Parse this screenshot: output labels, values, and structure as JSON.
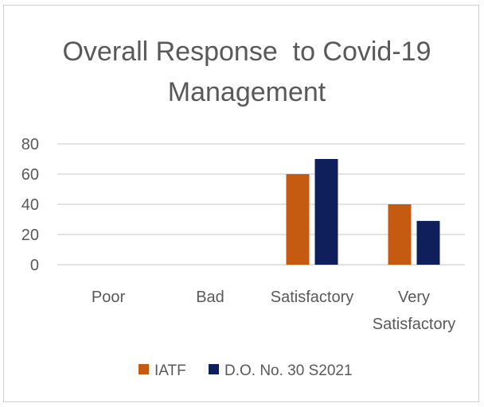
{
  "chart_data": {
    "type": "bar",
    "title_lines": [
      "Overall Response  to Covid-19",
      "Management"
    ],
    "categories": [
      [
        "Poor"
      ],
      [
        "Bad"
      ],
      [
        "Satisfactory"
      ],
      [
        "Very",
        "Satisfactory"
      ]
    ],
    "series": [
      {
        "name": "IATF",
        "color": "#c55a11",
        "values": [
          0,
          0,
          60,
          40
        ]
      },
      {
        "name": "D.O. No. 30 S2021",
        "color": "#0f1f5c",
        "values": [
          0,
          0,
          70,
          29
        ]
      }
    ],
    "yticks": [
      0,
      20,
      40,
      60,
      80
    ],
    "ylim": [
      0,
      80
    ],
    "grid": true,
    "legend_position": "bottom"
  }
}
